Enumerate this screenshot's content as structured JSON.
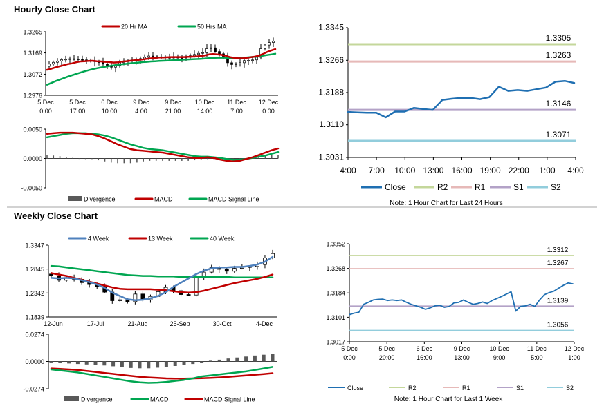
{
  "sections": {
    "hourly_title": "Hourly Close Chart",
    "weekly_title": "Weekly Close Chart"
  },
  "colors": {
    "red": "#c00000",
    "green": "#00a651",
    "blue": "#4f81bd",
    "close_blue": "#1f6fb2",
    "r2": "#c4d79b",
    "r1": "#e6b9b8",
    "s1": "#b3a2c7",
    "s2": "#92cddc",
    "candle": "#000000",
    "divergence": "#595959",
    "axis": "#000000",
    "divider": "#a6a6a6"
  },
  "chart_data": [
    {
      "id": "hourly_candles",
      "type": "candlestick",
      "title": "",
      "legend": [
        {
          "name": "20 Hr MA",
          "color": "#c00000"
        },
        {
          "name": "50 Hrs MA",
          "color": "#00a651"
        }
      ],
      "ylim": [
        1.2976,
        1.3265
      ],
      "yticks": [
        "1.3265",
        "1.3169",
        "1.3072",
        "1.2976"
      ],
      "ytick_values": [
        1.3265,
        1.3169,
        1.3072,
        1.2976
      ],
      "xticks": [
        {
          "l1": "5 Dec",
          "l2": "0:00"
        },
        {
          "l1": "5 Dec",
          "l2": "17:00"
        },
        {
          "l1": "6 Dec",
          "l2": "10:00"
        },
        {
          "l1": "9 Dec",
          "l2": "4:00"
        },
        {
          "l1": "9 Dec",
          "l2": "21:00"
        },
        {
          "l1": "10 Dec",
          "l2": "14:00"
        },
        {
          "l1": "11 Dec",
          "l2": "7:00"
        },
        {
          "l1": "12 Dec",
          "l2": "0:00"
        }
      ],
      "price_path": [
        1.3108,
        1.3118,
        1.3126,
        1.3132,
        1.3138,
        1.314,
        1.3142,
        1.3141,
        1.3139,
        1.3137,
        1.3134,
        1.3132,
        1.3129,
        1.3125,
        1.3118,
        1.311,
        1.3104,
        1.3112,
        1.3124,
        1.313,
        1.3134,
        1.3137,
        1.314,
        1.3143,
        1.3149,
        1.3155,
        1.3152,
        1.3149,
        1.3151,
        1.3148,
        1.3147,
        1.3149,
        1.3147,
        1.3146,
        1.3149,
        1.3156,
        1.3162,
        1.3167,
        1.317,
        1.3188,
        1.3192,
        1.3175,
        1.3165,
        1.3152,
        1.3124,
        1.3116,
        1.312,
        1.3124,
        1.3134,
        1.3135,
        1.3137,
        1.3149,
        1.3188,
        1.3205,
        1.3216,
        1.3222
      ],
      "ma20": [
        1.3092,
        1.3097,
        1.3103,
        1.3108,
        1.3113,
        1.3118,
        1.3121,
        1.3126,
        1.313,
        1.3131,
        1.3132,
        1.3133,
        1.3131,
        1.313,
        1.3128,
        1.3127,
        1.3125,
        1.3126,
        1.3129,
        1.3131,
        1.3133,
        1.3135,
        1.3137,
        1.3139,
        1.3142,
        1.3144,
        1.3146,
        1.3148,
        1.3148,
        1.3149,
        1.315,
        1.315,
        1.315,
        1.315,
        1.3151,
        1.3152,
        1.3153,
        1.3155,
        1.3157,
        1.3162,
        1.3164,
        1.3162,
        1.316,
        1.3156,
        1.315,
        1.3147,
        1.3145,
        1.3144,
        1.3146,
        1.3149,
        1.3152,
        1.3156,
        1.3164,
        1.3173,
        1.318,
        1.3186
      ],
      "ma50": [
        1.3024,
        1.3032,
        1.304,
        1.3047,
        1.3054,
        1.3061,
        1.3067,
        1.3073,
        1.3079,
        1.3085,
        1.309,
        1.3095,
        1.3099,
        1.3103,
        1.3106,
        1.3109,
        1.3112,
        1.3115,
        1.3117,
        1.3119,
        1.3121,
        1.3123,
        1.3125,
        1.3127,
        1.3128,
        1.313,
        1.3131,
        1.3132,
        1.3133,
        1.3134,
        1.3135,
        1.3136,
        1.3137,
        1.3138,
        1.3139,
        1.314,
        1.3141,
        1.3142,
        1.3143,
        1.3145,
        1.3146,
        1.3147,
        1.3147,
        1.3147,
        1.3146,
        1.3146,
        1.3146,
        1.3147,
        1.3148,
        1.315,
        1.3151,
        1.3153,
        1.3156,
        1.3159,
        1.3162,
        1.3165
      ]
    },
    {
      "id": "hourly_macd",
      "type": "macd",
      "legend": [
        {
          "name": "Divergence",
          "color": "#595959"
        },
        {
          "name": "MACD",
          "color": "#c00000"
        },
        {
          "name": "MACD Signal Line",
          "color": "#00a651"
        }
      ],
      "ylim": [
        -0.005,
        0.005
      ],
      "yticks": [
        "0.0050",
        "0.0000",
        "-0.0050"
      ],
      "ytick_values": [
        0.005,
        0.0,
        -0.005
      ],
      "macd": [
        0.0042,
        0.0043,
        0.0044,
        0.0044,
        0.0044,
        0.0043,
        0.0042,
        0.0041,
        0.0038,
        0.0034,
        0.0029,
        0.0024,
        0.002,
        0.0016,
        0.0014,
        0.0013,
        0.0012,
        0.0011,
        0.001,
        0.0008,
        0.0006,
        0.0004,
        0.0002,
        0.0001,
        0.0001,
        0.0002,
        0.0001,
        -0.0002,
        -0.0004,
        -0.0005,
        -0.0004,
        -0.0001,
        0.0002,
        0.0006,
        0.001,
        0.0014,
        0.0017
      ],
      "signal": [
        0.0036,
        0.0038,
        0.004,
        0.0042,
        0.0043,
        0.0043,
        0.0043,
        0.0042,
        0.0041,
        0.0039,
        0.0036,
        0.0032,
        0.0028,
        0.0024,
        0.0021,
        0.0018,
        0.0016,
        0.0015,
        0.0014,
        0.0012,
        0.001,
        0.0008,
        0.0006,
        0.0004,
        0.0003,
        0.0003,
        0.0002,
        0.0001,
        -0.0001,
        -0.0002,
        -0.0002,
        -0.0001,
        0.0001,
        0.0003,
        0.0005,
        0.0008,
        0.0011
      ]
    },
    {
      "id": "hourly_levels",
      "type": "line",
      "ylim": [
        1.3031,
        1.3345
      ],
      "yticks": [
        "1.3345",
        "1.3266",
        "1.3188",
        "1.3110",
        "1.3031"
      ],
      "ytick_values": [
        1.3345,
        1.3266,
        1.3188,
        1.311,
        1.3031
      ],
      "xticks": [
        "4:00",
        "7:00",
        "10:00",
        "13:00",
        "16:00",
        "19:00",
        "22:00",
        "1:00",
        "4:00"
      ],
      "series": [
        {
          "name": "Close",
          "values": [
            1.3141,
            1.314,
            1.3139,
            1.3139,
            1.3128,
            1.3142,
            1.3142,
            1.3151,
            1.3148,
            1.3146,
            1.317,
            1.3173,
            1.3175,
            1.3175,
            1.3172,
            1.3177,
            1.3202,
            1.3192,
            1.3194,
            1.3192,
            1.3196,
            1.32,
            1.3214,
            1.3216,
            1.3211
          ]
        },
        {
          "name": "R2",
          "level": 1.3305
        },
        {
          "name": "R1",
          "level": 1.3263
        },
        {
          "name": "S1",
          "level": 1.3146
        },
        {
          "name": "S2",
          "level": 1.3071
        }
      ],
      "level_labels": {
        "R2": "1.3305",
        "R1": "1.3263",
        "S1": "1.3146",
        "S2": "1.3071"
      },
      "legend": [
        {
          "name": "Close",
          "color": "#1f6fb2"
        },
        {
          "name": "R2",
          "color": "#c4d79b"
        },
        {
          "name": "R1",
          "color": "#e6b9b8"
        },
        {
          "name": "S1",
          "color": "#b3a2c7"
        },
        {
          "name": "S2",
          "color": "#92cddc"
        }
      ],
      "note": "Note: 1 Hour Chart for Last 24 Hours"
    },
    {
      "id": "weekly_candles",
      "type": "candlestick",
      "legend": [
        {
          "name": "4 Week",
          "color": "#4f81bd"
        },
        {
          "name": "13 Week",
          "color": "#c00000"
        },
        {
          "name": "40 Week",
          "color": "#00a651"
        }
      ],
      "ylim": [
        1.1839,
        1.3347
      ],
      "yticks": [
        "1.3347",
        "1.2845",
        "1.2342",
        "1.1839"
      ],
      "ytick_values": [
        1.3347,
        1.2845,
        1.2342,
        1.1839
      ],
      "xticks": [
        "12-Jun",
        "17-Jul",
        "21-Aug",
        "25-Sep",
        "30-Oct",
        "4-Dec"
      ],
      "closes": [
        1.27,
        1.261,
        1.265,
        1.263,
        1.256,
        1.252,
        1.248,
        1.236,
        1.218,
        1.22,
        1.216,
        1.232,
        1.22,
        1.227,
        1.237,
        1.246,
        1.239,
        1.231,
        1.23,
        1.269,
        1.278,
        1.288,
        1.284,
        1.28,
        1.286,
        1.288,
        1.29,
        1.294,
        1.308,
        1.317
      ],
      "ma4": [
        1.266,
        1.265,
        1.266,
        1.265,
        1.261,
        1.257,
        1.252,
        1.245,
        1.235,
        1.228,
        1.221,
        1.219,
        1.22,
        1.223,
        1.228,
        1.236,
        1.247,
        1.256,
        1.265,
        1.274,
        1.281,
        1.286,
        1.288,
        1.288,
        1.289,
        1.289,
        1.291,
        1.294,
        1.3,
        1.31
      ],
      "ma13": [
        1.276,
        1.273,
        1.27,
        1.266,
        1.262,
        1.258,
        1.254,
        1.25,
        1.246,
        1.243,
        1.242,
        1.242,
        1.242,
        1.242,
        1.241,
        1.24,
        1.238,
        1.236,
        1.235,
        1.236,
        1.239,
        1.243,
        1.247,
        1.251,
        1.255,
        1.258,
        1.261,
        1.264,
        1.268,
        1.273
      ],
      "ma40": [
        1.291,
        1.29,
        1.288,
        1.286,
        1.284,
        1.282,
        1.28,
        1.278,
        1.276,
        1.274,
        1.272,
        1.271,
        1.27,
        1.27,
        1.269,
        1.269,
        1.269,
        1.268,
        1.268,
        1.268,
        1.268,
        1.268,
        1.268,
        1.268,
        1.267,
        1.267,
        1.267,
        1.267,
        1.267,
        1.267
      ]
    },
    {
      "id": "weekly_macd",
      "type": "macd",
      "legend": [
        {
          "name": "Divergence",
          "color": "#595959"
        },
        {
          "name": "MACD",
          "color": "#00a651"
        },
        {
          "name": "MACD Signal Line",
          "color": "#c00000"
        }
      ],
      "ylim": [
        -0.0274,
        0.0274
      ],
      "yticks": [
        "0.0274",
        "0.0000",
        "-0.0274"
      ],
      "ytick_values": [
        0.0274,
        0.0,
        -0.0274
      ],
      "divergence": [
        -0.001,
        -0.0015,
        -0.002,
        -0.0025,
        -0.003,
        -0.0035,
        -0.004,
        -0.0048,
        -0.0058,
        -0.0065,
        -0.0068,
        -0.0068,
        -0.0062,
        -0.0055,
        -0.0045,
        -0.0035,
        -0.0025,
        -0.0012,
        0.0008,
        0.0018,
        0.003,
        0.004,
        0.005,
        0.006,
        0.0068,
        0.0075
      ],
      "macd": [
        -0.008,
        -0.009,
        -0.01,
        -0.011,
        -0.0125,
        -0.014,
        -0.0155,
        -0.017,
        -0.0185,
        -0.02,
        -0.021,
        -0.0215,
        -0.0212,
        -0.0205,
        -0.0195,
        -0.0185,
        -0.017,
        -0.015,
        -0.014,
        -0.013,
        -0.012,
        -0.011,
        -0.01,
        -0.0085,
        -0.007,
        -0.0055
      ],
      "signal": [
        -0.007,
        -0.0075,
        -0.008,
        -0.0085,
        -0.0095,
        -0.0105,
        -0.0115,
        -0.0125,
        -0.0135,
        -0.0145,
        -0.0155,
        -0.016,
        -0.0165,
        -0.017,
        -0.0172,
        -0.0172,
        -0.017,
        -0.0168,
        -0.0165,
        -0.016,
        -0.0155,
        -0.0148,
        -0.014,
        -0.0133,
        -0.0126,
        -0.0118
      ]
    },
    {
      "id": "weekly_levels",
      "type": "line",
      "ylim": [
        1.3017,
        1.3352
      ],
      "yticks": [
        "1.3352",
        "1.3268",
        "1.3184",
        "1.3101",
        "1.3017"
      ],
      "ytick_values": [
        1.3352,
        1.3268,
        1.3184,
        1.3101,
        1.3017
      ],
      "xticks": [
        {
          "l1": "5 Dec",
          "l2": "0:00"
        },
        {
          "l1": "5 Dec",
          "l2": "20:00"
        },
        {
          "l1": "6 Dec",
          "l2": "16:00"
        },
        {
          "l1": "9 Dec",
          "l2": "13:00"
        },
        {
          "l1": "10 Dec",
          "l2": "9:00"
        },
        {
          "l1": "11 Dec",
          "l2": "5:00"
        },
        {
          "l1": "12 Dec",
          "l2": "1:00"
        }
      ],
      "series": [
        {
          "name": "Close",
          "values": [
            1.311,
            1.3115,
            1.3118,
            1.3145,
            1.3152,
            1.316,
            1.3162,
            1.3163,
            1.3158,
            1.316,
            1.3158,
            1.316,
            1.3152,
            1.3145,
            1.314,
            1.3135,
            1.3128,
            1.3133,
            1.314,
            1.3142,
            1.3135,
            1.3138,
            1.315,
            1.3152,
            1.316,
            1.3152,
            1.3145,
            1.3148,
            1.3153,
            1.3148,
            1.3158,
            1.3165,
            1.3172,
            1.318,
            1.3188,
            1.3122,
            1.3138,
            1.314,
            1.3145,
            1.3138,
            1.316,
            1.3178,
            1.3185,
            1.319,
            1.32,
            1.321,
            1.3218,
            1.3215
          ]
        },
        {
          "name": "R2",
          "level": 1.3312
        },
        {
          "name": "R1",
          "level": 1.3267
        },
        {
          "name": "S1",
          "level": 1.3139
        },
        {
          "name": "S2",
          "level": 1.3056
        }
      ],
      "level_labels": {
        "R2": "1.3312",
        "R1": "1.3267",
        "S1": "1.3139",
        "S2": "1.3056"
      },
      "legend": [
        {
          "name": "Close",
          "color": "#1f6fb2"
        },
        {
          "name": "R2",
          "color": "#c4d79b"
        },
        {
          "name": "R1",
          "color": "#e6b9b8"
        },
        {
          "name": "S1",
          "color": "#b3a2c7"
        },
        {
          "name": "S2",
          "color": "#92cddc"
        }
      ],
      "note": "Note: 1 Hour Chart for Last 1 Week"
    }
  ]
}
